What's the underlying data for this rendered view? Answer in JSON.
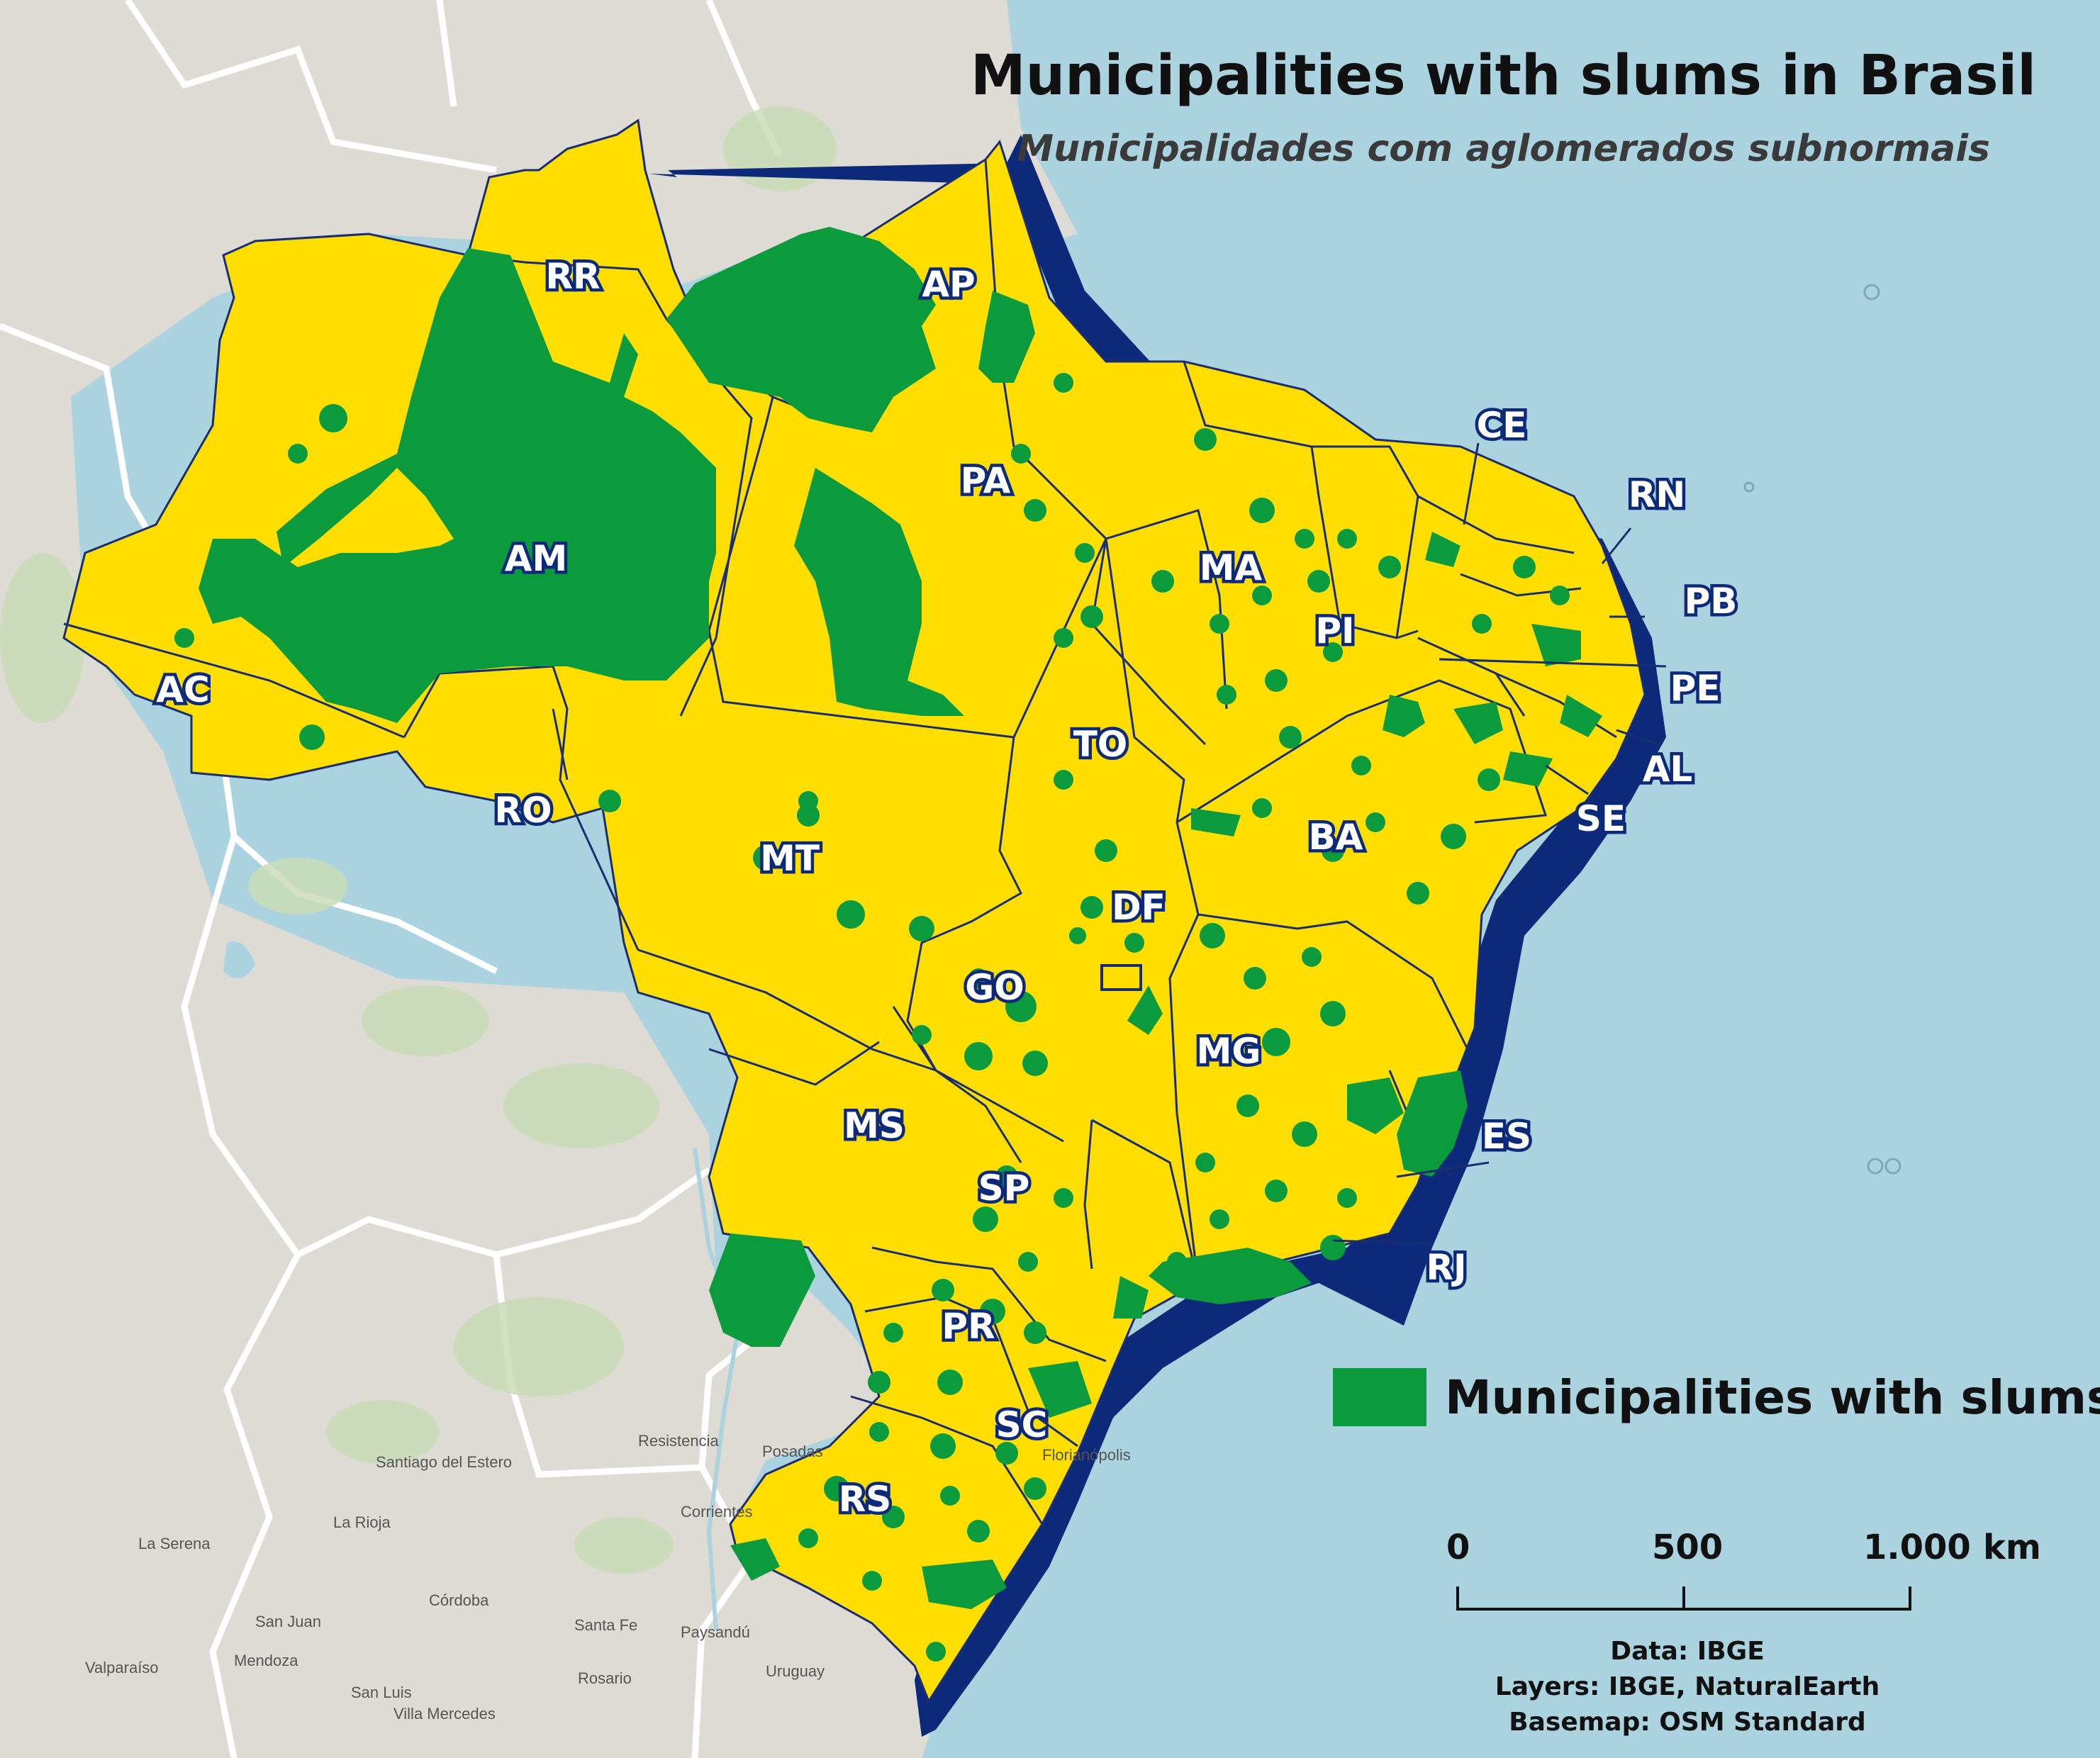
{
  "title": "Municipalities with slums in Brasil",
  "subtitle": "Municipalidades com aglomerados subnormais",
  "legend": {
    "label": "Municipalities with slums",
    "color": "#0b9a3c"
  },
  "scale_bar": {
    "labels": [
      "0",
      "500",
      "1.000"
    ],
    "unit": "km"
  },
  "credits": {
    "data": "Data: IBGE",
    "layers": "Layers: IBGE, NaturalEarth",
    "basemap": "Basemap: OSM Standard"
  },
  "colors": {
    "ocean": "#aad3df",
    "land": "#dedbd5",
    "state_fill": "#ffde00",
    "slum_fill": "#0b9a3c",
    "coast_shadow": "#0d2a7a",
    "border": "#ffffff"
  },
  "states": [
    "RR",
    "AP",
    "AM",
    "PA",
    "CE",
    "RN",
    "PB",
    "PE",
    "AL",
    "SE",
    "MA",
    "PI",
    "AC",
    "TO",
    "RO",
    "MT",
    "BA",
    "DF",
    "GO",
    "MG",
    "ES",
    "MS",
    "SP",
    "RJ",
    "PR",
    "SC",
    "RS"
  ],
  "basemap_places": [
    "Santiago del Estero",
    "La Rioja",
    "La Serena",
    "San Juan",
    "Córdoba",
    "Santa Fe",
    "Resistencia",
    "Posadas",
    "Valparaíso",
    "Mendoza",
    "San Luis",
    "Rosario",
    "Uruguay",
    "Paysandú",
    "Florianópolis",
    "Villa Mercedes",
    "Corrientes"
  ]
}
